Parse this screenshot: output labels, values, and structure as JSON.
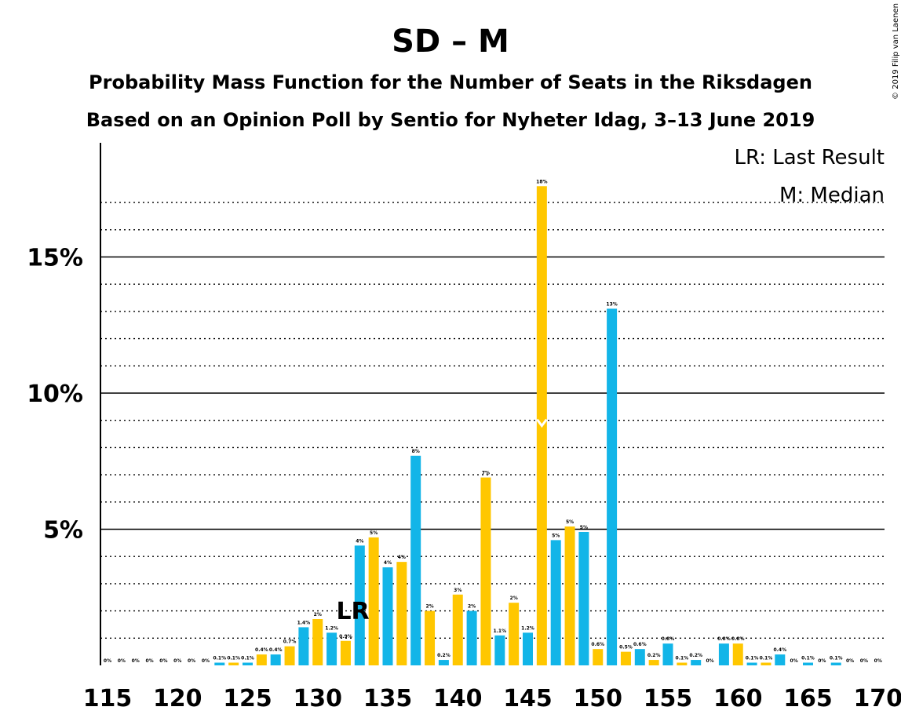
{
  "copyright": "© 2019 Filip van Laenen",
  "legend": {
    "lr": "LR: Last Result",
    "m": "M: Median"
  },
  "markers": {
    "lr_text": "LR",
    "lr_seat": 132,
    "median_seat": 146
  },
  "colors": {
    "blue": "#12b5e8",
    "yellow": "#ffc700",
    "white": "#ffffff",
    "black": "#000000"
  },
  "chart_data": {
    "type": "bar",
    "title": "SD – M",
    "subtitle": "Probability Mass Function for the Number of Seats in the Riksdagen",
    "subtitle2": "Based on an Opinion Poll by Sentio for Nyheter Idag, 3–13 June 2019",
    "x": [
      115,
      116,
      117,
      118,
      119,
      120,
      121,
      122,
      123,
      124,
      125,
      126,
      127,
      128,
      129,
      130,
      131,
      132,
      133,
      134,
      135,
      136,
      137,
      138,
      139,
      140,
      141,
      142,
      143,
      144,
      145,
      146,
      147,
      148,
      149,
      150,
      151,
      152,
      153,
      154,
      155,
      156,
      157,
      158,
      159,
      160,
      161,
      162,
      163,
      164,
      165,
      166,
      167,
      168,
      169,
      170
    ],
    "values": [
      0,
      0,
      0,
      0,
      0,
      0,
      0,
      0,
      0.1,
      0.1,
      0.1,
      0.4,
      0.4,
      0.7,
      1.4,
      1.7,
      1.2,
      0.9,
      4.4,
      4.7,
      3.6,
      3.8,
      7.7,
      2.0,
      0.2,
      2.6,
      2.0,
      6.9,
      1.1,
      2.3,
      1.2,
      17.6,
      4.6,
      5.1,
      4.9,
      0.6,
      13.1,
      0.5,
      0.6,
      0.2,
      0.8,
      0.1,
      0.2,
      0,
      0.8,
      0.8,
      0.1,
      0.1,
      0.4,
      0,
      0.1,
      0,
      0.1,
      0,
      0,
      0
    ],
    "labels": [
      "0%",
      "0%",
      "0%",
      "0%",
      "0%",
      "0%",
      "0%",
      "0%",
      "0.1%",
      "0.1%",
      "0.1%",
      "0.4%",
      "0.4%",
      "0.7%",
      "1.4%",
      "2%",
      "1.2%",
      "0.9%",
      "4%",
      "5%",
      "4%",
      "4%",
      "8%",
      "2%",
      "0.2%",
      "3%",
      "2%",
      "7%",
      "1.1%",
      "2%",
      "1.2%",
      "18%",
      "5%",
      "5%",
      "5%",
      "0.6%",
      "13%",
      "0.5%",
      "0.6%",
      "0.2%",
      "0.8%",
      "0.1%",
      "0.2%",
      "0%",
      "0.8%",
      "0.8%",
      "0.1%",
      "0.1%",
      "0.4%",
      "0%",
      "0.1%",
      "0%",
      "0.1%",
      "0%",
      "0%",
      "0%"
    ],
    "xticks": [
      "115",
      "120",
      "125",
      "130",
      "135",
      "140",
      "145",
      "150",
      "155",
      "160",
      "165",
      "170"
    ],
    "yticks": [
      "5%",
      "10%",
      "15%"
    ],
    "ylim": [
      0,
      19
    ],
    "grid": true
  }
}
